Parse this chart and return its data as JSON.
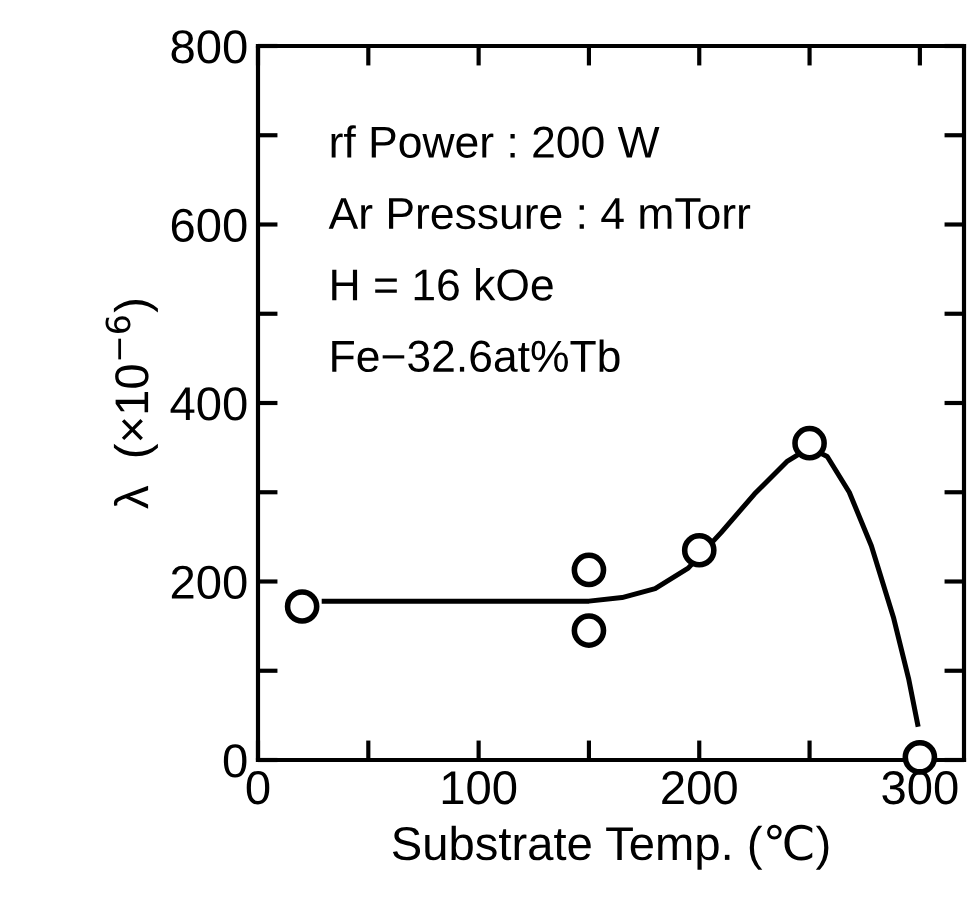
{
  "chart_data": {
    "type": "scatter",
    "xlabel": "Substrate Temp. (℃)",
    "ylabel": "λ  (×10$^{−6}$)",
    "annotations": [
      "rf Power : 200 W",
      "Ar Pressure : 4 mTorr",
      "H = 16 kOe",
      "Fe−32.6at%Tb"
    ],
    "series": [
      {
        "color": "#000000",
        "marker": "circle",
        "x": [
          20,
          150,
          150,
          200,
          250,
          300
        ],
        "values": [
          172,
          213,
          145,
          235,
          355,
          3
        ]
      },
      {
        "type": "line",
        "color": "#000000",
        "marker": "none",
        "line_style": "solid",
        "x": [
          30,
          100,
          150,
          165,
          180,
          195,
          210,
          225,
          240,
          250,
          258,
          268,
          278,
          288,
          295,
          299
        ],
        "values": [
          178,
          178,
          178,
          182,
          192,
          215,
          255,
          298,
          335,
          350,
          340,
          300,
          240,
          160,
          90,
          40
        ]
      }
    ],
    "xlim": [
      0,
      320
    ],
    "ylim": [
      0,
      800
    ],
    "xticks": [
      0,
      {
        "value": 50,
        "label": null
      },
      100,
      {
        "value": 150,
        "label": null
      },
      200,
      {
        "value": 250,
        "label": null
      },
      300
    ],
    "yticks": [
      0,
      {
        "value": 100,
        "label": null
      },
      200,
      {
        "value": 300,
        "label": null
      },
      400,
      {
        "value": 500,
        "label": null
      },
      600,
      {
        "value": 700,
        "label": null
      },
      800
    ],
    "grid": false
  }
}
